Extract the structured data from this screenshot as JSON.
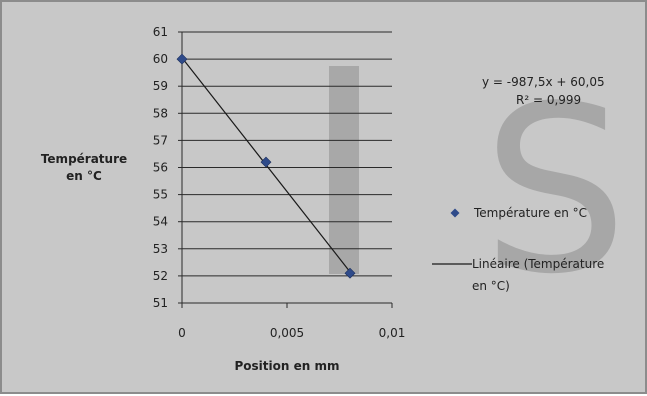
{
  "chart_data": {
    "type": "scatter",
    "xlabel": "Position en mm",
    "ylabel_lines": [
      "Température",
      "en °C"
    ],
    "xlim": [
      0,
      0.01
    ],
    "ylim": [
      51,
      61
    ],
    "x_ticks": [
      "0",
      "0,005",
      "0,01"
    ],
    "y_ticks": [
      "51",
      "52",
      "53",
      "54",
      "55",
      "56",
      "57",
      "58",
      "59",
      "60",
      "61"
    ],
    "grid": "horizontal",
    "series": [
      {
        "name": "Température en °C",
        "x": [
          0,
          0.004,
          0.008
        ],
        "y": [
          60,
          56.2,
          52.1
        ],
        "marker": "diamond",
        "color": "#2f4b8a"
      }
    ],
    "trendline": {
      "type": "linear",
      "slope": -987.5,
      "intercept": 60.05,
      "legend_lines": [
        "Linéaire (Température",
        "en °C)"
      ],
      "equation": "y = -987,5x + 60,05",
      "r2": "R² = 0,999",
      "color": "#1a1a1a"
    },
    "legend_position": "right",
    "watermark_text": "JS",
    "watermark_color": "#9a9a9a"
  }
}
